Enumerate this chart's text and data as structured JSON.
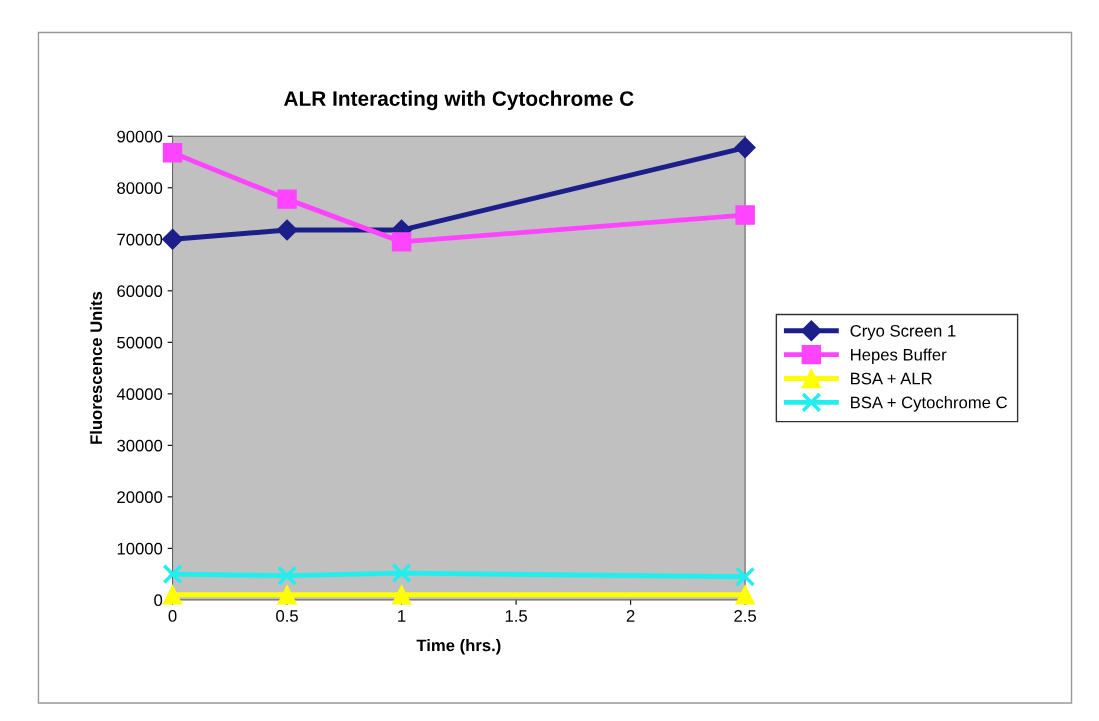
{
  "chart_data": {
    "type": "line",
    "title": "ALR Interacting with Cytochrome C",
    "xlabel": "Time (hrs.)",
    "ylabel": "Fluorescence Units",
    "x": [
      0,
      0.5,
      1,
      2.5
    ],
    "series": [
      {
        "name": "Cryo Screen 1",
        "color": "#1c1f8a",
        "marker": "diamond",
        "values": [
          70000,
          71800,
          71800,
          87800
        ]
      },
      {
        "name": "Hepes Buffer",
        "color": "#ff44ff",
        "marker": "square",
        "values": [
          86800,
          77800,
          69500,
          74700
        ]
      },
      {
        "name": "BSA + ALR",
        "color": "#ffff00",
        "marker": "triangle",
        "values": [
          1000,
          1000,
          1000,
          1000
        ]
      },
      {
        "name": "BSA + Cytochrome C",
        "color": "#22eeee",
        "marker": "cross",
        "values": [
          5000,
          4700,
          5200,
          4500
        ]
      }
    ],
    "xlim": [
      0,
      2.5
    ],
    "xticks": [
      0,
      0.5,
      1,
      1.5,
      2,
      2.5
    ],
    "ylim": [
      0,
      90000
    ],
    "yticks": [
      0,
      10000,
      20000,
      30000,
      40000,
      50000,
      60000,
      70000,
      80000,
      90000
    ],
    "grid": false,
    "legend": "right",
    "line_style": "solid"
  }
}
